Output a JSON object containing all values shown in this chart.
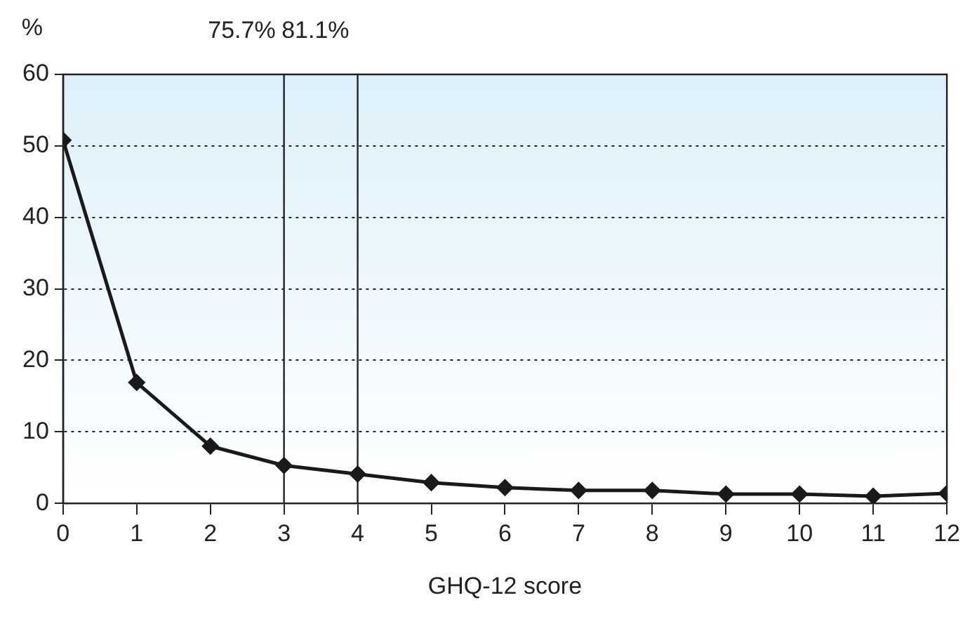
{
  "chart_data": {
    "type": "line",
    "xlabel": "GHQ-12 score",
    "ylabel": "%",
    "x": [
      0,
      1,
      2,
      3,
      4,
      5,
      6,
      7,
      8,
      9,
      10,
      11,
      12
    ],
    "series": [
      {
        "color": "#1a1a1a",
        "values": [
          50.8,
          16.9,
          8.0,
          5.3,
          4.1,
          2.9,
          2.2,
          1.8,
          1.8,
          1.3,
          1.3,
          1.0,
          1.4
        ]
      }
    ],
    "xlim": [
      0,
      12
    ],
    "xticks": [
      0,
      1,
      2,
      3,
      4,
      5,
      6,
      7,
      8,
      9,
      10,
      11,
      12
    ],
    "ylim": [
      0,
      60
    ],
    "yticks": [
      0,
      10,
      20,
      30,
      40,
      50,
      60
    ],
    "ref_lines": [
      {
        "axis": "x",
        "value": 3
      },
      {
        "axis": "x",
        "value": 4
      }
    ],
    "annotations": [
      {
        "text": "75.7%",
        "x": 3,
        "y": 60
      },
      {
        "text": "81.1%",
        "x": 4,
        "y": 60
      }
    ],
    "grid": "y",
    "marker": "diamond",
    "line_style": "solid",
    "legend": false
  }
}
